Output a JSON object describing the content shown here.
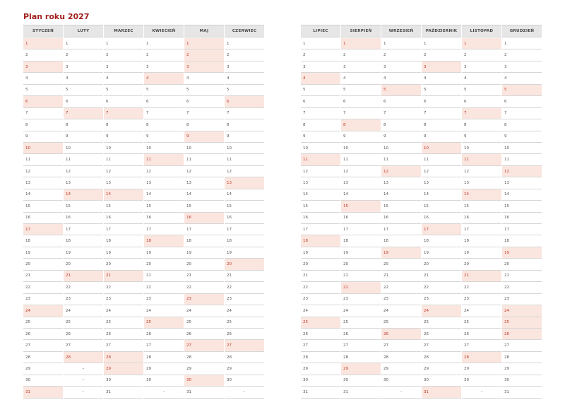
{
  "title": "Plan roku 2027",
  "colors": {
    "highlight_bg": "#fbe6df",
    "highlight_text": "#c0392b",
    "title": "#a3231f"
  },
  "missing_day_marker": "–",
  "halves": [
    [
      {
        "name": "STYCZEŃ",
        "days": 31,
        "highlighted": [
          1,
          3,
          6,
          10,
          17,
          24,
          31
        ]
      },
      {
        "name": "LUTY",
        "days": 28,
        "highlighted": [
          7,
          14,
          21,
          28
        ]
      },
      {
        "name": "MARZEC",
        "days": 31,
        "highlighted": [
          7,
          14,
          21,
          28,
          29
        ]
      },
      {
        "name": "KWIECIEŃ",
        "days": 30,
        "highlighted": [
          4,
          11,
          18,
          25
        ]
      },
      {
        "name": "MAJ",
        "days": 31,
        "highlighted": [
          1,
          2,
          3,
          9,
          16,
          23,
          27,
          30
        ]
      },
      {
        "name": "CZERWIEC",
        "days": 30,
        "highlighted": [
          6,
          13,
          20,
          27
        ]
      }
    ],
    [
      {
        "name": "LIPIEC",
        "days": 31,
        "highlighted": [
          4,
          11,
          18,
          25
        ]
      },
      {
        "name": "SIERPIEŃ",
        "days": 31,
        "highlighted": [
          1,
          8,
          15,
          22,
          29
        ]
      },
      {
        "name": "WRZESIEŃ",
        "days": 30,
        "highlighted": [
          5,
          12,
          19,
          26
        ]
      },
      {
        "name": "PAŹDZIERNIK",
        "days": 31,
        "highlighted": [
          3,
          10,
          17,
          24,
          31
        ]
      },
      {
        "name": "LISTOPAD",
        "days": 30,
        "highlighted": [
          1,
          7,
          11,
          14,
          21,
          28
        ]
      },
      {
        "name": "GRUDZIEŃ",
        "days": 31,
        "highlighted": [
          5,
          12,
          19,
          24,
          25,
          26
        ]
      }
    ]
  ]
}
